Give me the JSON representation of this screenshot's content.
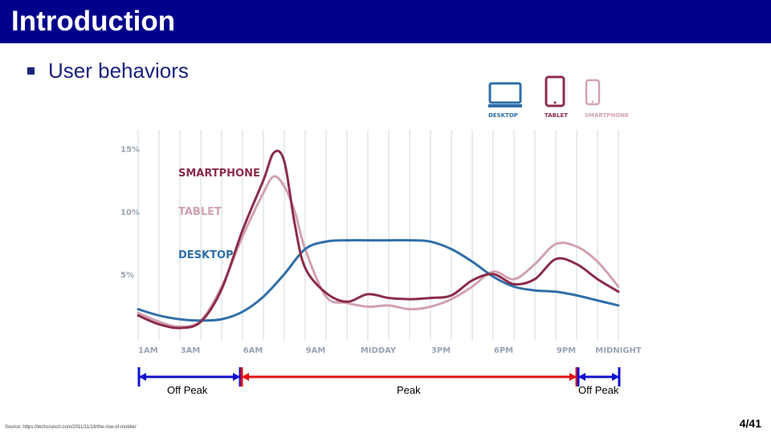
{
  "slide": {
    "title": "Introduction",
    "bullet": "User behaviors",
    "source": "Source: https://techcrunch.com/2011/11/18/the-rise-of-mobile/",
    "page": "4/41"
  },
  "devices": {
    "desktop": "DESKTOP",
    "tablet": "TABLET",
    "smartphone": "SMARTPHONE"
  },
  "periods": {
    "left": "Off Peak",
    "middle": "Peak",
    "right": "Off Peak"
  },
  "chart_data": {
    "type": "line",
    "x_ticks": [
      "1AM",
      "3AM",
      "6AM",
      "9AM",
      "MIDDAY",
      "3PM",
      "6PM",
      "9PM",
      "MIDNIGHT"
    ],
    "y_ticks": [
      "15%",
      "10%",
      "5%"
    ],
    "ylim": [
      0,
      16
    ],
    "colors": {
      "desktop": "#2f6fa8",
      "tablet": "#d2a2ae",
      "smartphone": "#8b2c4a",
      "peak": "#e01010",
      "offpeak": "#1010d0"
    },
    "series": [
      {
        "name": "SMARTPHONE",
        "key": "smartphone",
        "points": [
          [
            1,
            1.7
          ],
          [
            2,
            1.0
          ],
          [
            3,
            0.7
          ],
          [
            4,
            1.2
          ],
          [
            5,
            3.8
          ],
          [
            6,
            8.5
          ],
          [
            7,
            12.5
          ],
          [
            7.5,
            14.7
          ],
          [
            8,
            14.0
          ],
          [
            8.5,
            9.0
          ],
          [
            9,
            5.5
          ],
          [
            10,
            3.5
          ],
          [
            11,
            2.8
          ],
          [
            12,
            3.4
          ],
          [
            13,
            3.1
          ],
          [
            14,
            3.0
          ],
          [
            15,
            3.1
          ],
          [
            16,
            3.3
          ],
          [
            17,
            4.5
          ],
          [
            18,
            5.0
          ],
          [
            19,
            4.2
          ],
          [
            20,
            4.6
          ],
          [
            21,
            6.2
          ],
          [
            22,
            5.8
          ],
          [
            23,
            4.6
          ],
          [
            24,
            3.6
          ]
        ]
      },
      {
        "name": "TABLET",
        "key": "tablet",
        "points": [
          [
            1,
            1.9
          ],
          [
            2,
            1.2
          ],
          [
            3,
            0.8
          ],
          [
            4,
            1.3
          ],
          [
            5,
            4.0
          ],
          [
            6,
            8.0
          ],
          [
            7,
            11.5
          ],
          [
            7.5,
            12.8
          ],
          [
            8,
            12.0
          ],
          [
            8.5,
            10.0
          ],
          [
            9,
            7.0
          ],
          [
            10,
            3.2
          ],
          [
            11,
            2.7
          ],
          [
            12,
            2.4
          ],
          [
            13,
            2.5
          ],
          [
            14,
            2.2
          ],
          [
            15,
            2.4
          ],
          [
            16,
            3.0
          ],
          [
            17,
            4.0
          ],
          [
            18,
            5.2
          ],
          [
            19,
            4.6
          ],
          [
            20,
            5.8
          ],
          [
            21,
            7.4
          ],
          [
            22,
            7.2
          ],
          [
            23,
            6.0
          ],
          [
            24,
            4.0
          ]
        ]
      },
      {
        "name": "DESKTOP",
        "key": "desktop",
        "points": [
          [
            1,
            2.2
          ],
          [
            2,
            1.7
          ],
          [
            3,
            1.4
          ],
          [
            4,
            1.3
          ],
          [
            5,
            1.4
          ],
          [
            6,
            2.0
          ],
          [
            7,
            3.2
          ],
          [
            8,
            5.0
          ],
          [
            9,
            7.0
          ],
          [
            10,
            7.6
          ],
          [
            11,
            7.7
          ],
          [
            12,
            7.7
          ],
          [
            13,
            7.7
          ],
          [
            14,
            7.7
          ],
          [
            15,
            7.6
          ],
          [
            16,
            7.0
          ],
          [
            17,
            6.0
          ],
          [
            18,
            4.8
          ],
          [
            19,
            4.0
          ],
          [
            20,
            3.7
          ],
          [
            21,
            3.6
          ],
          [
            22,
            3.3
          ],
          [
            23,
            2.9
          ],
          [
            24,
            2.5
          ]
        ]
      }
    ]
  }
}
